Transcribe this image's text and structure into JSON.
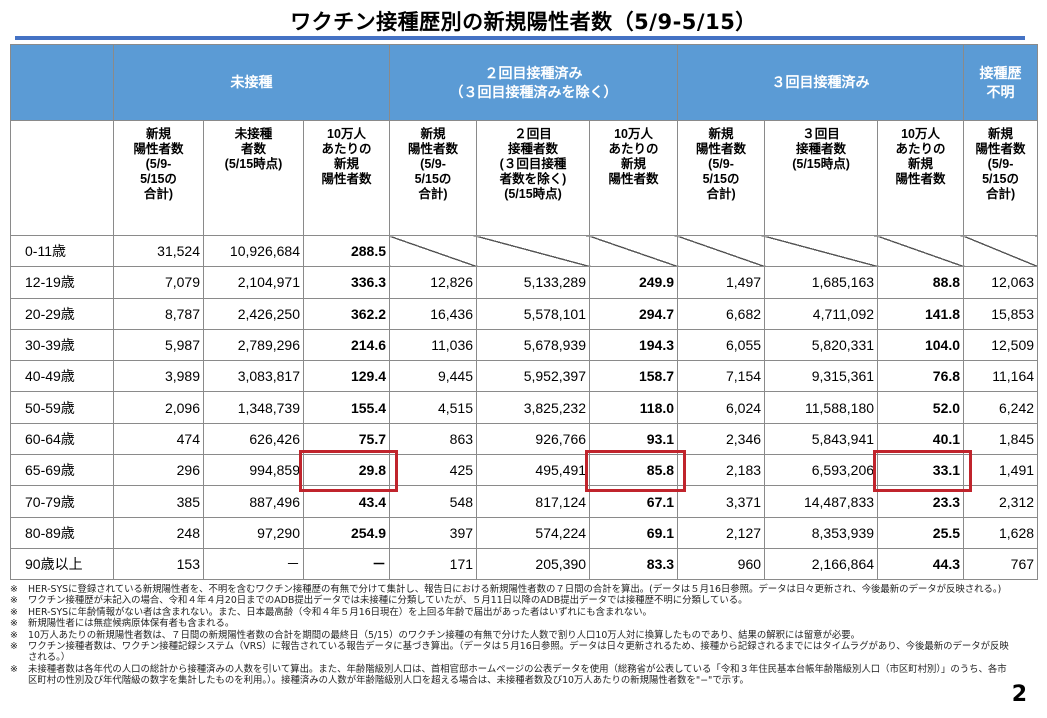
{
  "title": "ワクチン接種歴別の新規陽性者数（5/9-5/15）",
  "groups": {
    "unvaccinated": "未接種",
    "second_line1": "２回目接種済み",
    "second_line2": "（３回目接種済みを除く）",
    "third": "３回目接種済み",
    "unknown_line1": "接種歴",
    "unknown_line2": "不明"
  },
  "subheaders": {
    "new_cases": "新規\n陽性者数\n(5/9-\n5/15の\n合計)",
    "unvax_count": "未接種\n者数\n(5/15時点)",
    "per100k": "10万人\nあたりの\n新規\n陽性者数",
    "second_count": "２回目\n接種者数\n(３回目接種\n者数を除く)\n(5/15時点)",
    "third_count": "３回目\n接種者数\n(5/15時点)"
  },
  "rows": [
    {
      "age": "0-11歳",
      "u_new": "31,524",
      "u_pop": "10,926,684",
      "u_rate": "288.5",
      "s_new": "",
      "s_pop": "",
      "s_rate": "",
      "t_new": "",
      "t_pop": "",
      "t_rate": "",
      "unk": ""
    },
    {
      "age": "12-19歳",
      "u_new": "7,079",
      "u_pop": "2,104,971",
      "u_rate": "336.3",
      "s_new": "12,826",
      "s_pop": "5,133,289",
      "s_rate": "249.9",
      "t_new": "1,497",
      "t_pop": "1,685,163",
      "t_rate": "88.8",
      "unk": "12,063"
    },
    {
      "age": "20-29歳",
      "u_new": "8,787",
      "u_pop": "2,426,250",
      "u_rate": "362.2",
      "s_new": "16,436",
      "s_pop": "5,578,101",
      "s_rate": "294.7",
      "t_new": "6,682",
      "t_pop": "4,711,092",
      "t_rate": "141.8",
      "unk": "15,853"
    },
    {
      "age": "30-39歳",
      "u_new": "5,987",
      "u_pop": "2,789,296",
      "u_rate": "214.6",
      "s_new": "11,036",
      "s_pop": "5,678,939",
      "s_rate": "194.3",
      "t_new": "6,055",
      "t_pop": "5,820,331",
      "t_rate": "104.0",
      "unk": "12,509"
    },
    {
      "age": "40-49歳",
      "u_new": "3,989",
      "u_pop": "3,083,817",
      "u_rate": "129.4",
      "s_new": "9,445",
      "s_pop": "5,952,397",
      "s_rate": "158.7",
      "t_new": "7,154",
      "t_pop": "9,315,361",
      "t_rate": "76.8",
      "unk": "11,164"
    },
    {
      "age": "50-59歳",
      "u_new": "2,096",
      "u_pop": "1,348,739",
      "u_rate": "155.4",
      "s_new": "4,515",
      "s_pop": "3,825,232",
      "s_rate": "118.0",
      "t_new": "6,024",
      "t_pop": "11,588,180",
      "t_rate": "52.0",
      "unk": "6,242"
    },
    {
      "age": "60-64歳",
      "u_new": "474",
      "u_pop": "626,426",
      "u_rate": "75.7",
      "s_new": "863",
      "s_pop": "926,766",
      "s_rate": "93.1",
      "t_new": "2,346",
      "t_pop": "5,843,941",
      "t_rate": "40.1",
      "unk": "1,845"
    },
    {
      "age": "65-69歳",
      "u_new": "296",
      "u_pop": "994,859",
      "u_rate": "29.8",
      "s_new": "425",
      "s_pop": "495,491",
      "s_rate": "85.8",
      "t_new": "2,183",
      "t_pop": "6,593,206",
      "t_rate": "33.1",
      "unk": "1,491"
    },
    {
      "age": "70-79歳",
      "u_new": "385",
      "u_pop": "887,496",
      "u_rate": "43.4",
      "s_new": "548",
      "s_pop": "817,124",
      "s_rate": "67.1",
      "t_new": "3,371",
      "t_pop": "14,487,833",
      "t_rate": "23.3",
      "unk": "2,312"
    },
    {
      "age": "80-89歳",
      "u_new": "248",
      "u_pop": "97,290",
      "u_rate": "254.9",
      "s_new": "397",
      "s_pop": "574,224",
      "s_rate": "69.1",
      "t_new": "2,127",
      "t_pop": "8,353,939",
      "t_rate": "25.5",
      "unk": "1,628"
    },
    {
      "age": "90歳以上",
      "u_new": "153",
      "u_pop": "－",
      "u_rate": "－",
      "s_new": "171",
      "s_pop": "205,390",
      "s_rate": "83.3",
      "t_new": "960",
      "t_pop": "2,166,864",
      "t_rate": "44.3",
      "unk": "767"
    }
  ],
  "note_mark": "※",
  "notes": [
    "HER-SYSに登録されている新規陽性者を、不明を含むワクチン接種歴の有無で分けて集計し、報告日における新規陽性者数の７日間の合計を算出。(データは５月16日参照。データは日々更新され、今後最新のデータが反映される。)",
    "ワクチン接種歴が未記入の場合、令和４年４月20日までのADB提出データでは未接種に分類していたが、５月11日以降のADB提出データでは接種歴不明に分類している。",
    "HER-SYSに年齢情報がない者は含まれない。また、日本最高齢（令和４年５月16日現在）を上回る年齢で届出があった者はいずれにも含まれない。",
    "新規陽性者には無症候病原体保有者も含まれる。",
    "10万人あたりの新規陽性者数は、７日間の新規陽性者数の合計を期間の最終日（5/15）のワクチン接種の有無で分けた人数で割り人口10万人対に換算したものであり、結果の解釈には留意が必要。",
    "ワクチン接種者数は、ワクチン接種記録システム（VRS）に報告されている報告データに基づき算出。（データは５月16日参照。データは日々更新されるため、接種から記録されるまでにはタイムラグがあり、今後最新のデータが反映される。）",
    "未接種者数は各年代の人口の総計から接種済みの人数を引いて算出。また、年齢階級別人口は、首相官邸ホームページの公表データを使用（総務省が公表している「令和３年住民基本台帳年齢階級別人口（市区町村別）」のうち、各市区町村の性別及び年代階級の数字を集計したものを利用。）。接種済みの人数が年齢階級別人口を超える場合は、未接種者数及び10万人あたりの新規陽性者数を\"−\"で示す。"
  ],
  "page_number": "2",
  "colors": {
    "header_blue": "#5b9bd5",
    "rule_blue": "#4472c4",
    "highlight_red": "#c0242c"
  },
  "highlighted": [
    {
      "age": "65-69歳",
      "column": "u_rate"
    },
    {
      "age": "65-69歳",
      "column": "s_rate"
    },
    {
      "age": "65-69歳",
      "column": "t_rate"
    }
  ]
}
